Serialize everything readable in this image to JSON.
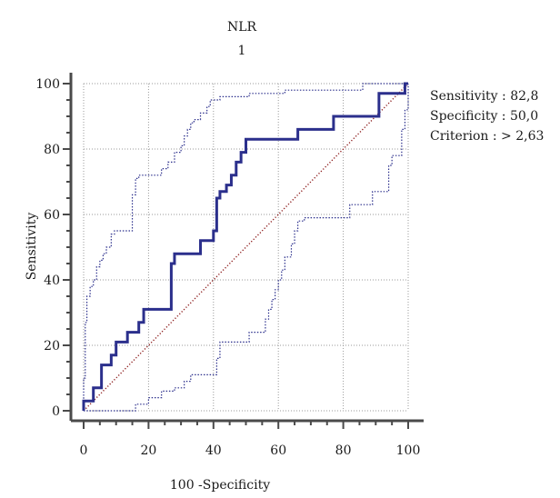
{
  "chart_data": {
    "type": "line",
    "title": "NLR",
    "subtitle": "1",
    "xlabel": "100 -Specificity",
    "ylabel": "Sensitivity",
    "xlim": [
      0,
      100
    ],
    "ylim": [
      0,
      100
    ],
    "x_ticks": [
      0,
      20,
      40,
      60,
      80,
      100
    ],
    "y_ticks": [
      0,
      20,
      40,
      60,
      80,
      100
    ],
    "grid": true,
    "annotations": [
      "Sensitivity : 82,8",
      "Specificity : 50,0",
      "Criterion : > 2,63"
    ],
    "series": [
      {
        "role": "roc",
        "color": "#2b2f8c",
        "style": "solid",
        "points": [
          [
            0,
            0
          ],
          [
            0,
            3
          ],
          [
            3,
            3
          ],
          [
            3,
            7
          ],
          [
            5.5,
            7
          ],
          [
            5.5,
            14
          ],
          [
            8.5,
            14
          ],
          [
            8.5,
            17
          ],
          [
            10,
            17
          ],
          [
            10,
            21
          ],
          [
            13.5,
            21
          ],
          [
            13.5,
            24
          ],
          [
            17,
            24
          ],
          [
            17,
            27
          ],
          [
            18.5,
            27
          ],
          [
            18.5,
            31
          ],
          [
            27,
            31
          ],
          [
            27,
            45
          ],
          [
            28,
            45
          ],
          [
            28,
            48
          ],
          [
            36,
            48
          ],
          [
            36,
            52
          ],
          [
            40,
            52
          ],
          [
            40,
            55
          ],
          [
            41,
            55
          ],
          [
            41,
            65
          ],
          [
            42,
            65
          ],
          [
            42,
            67
          ],
          [
            44,
            67
          ],
          [
            44,
            69
          ],
          [
            45.5,
            69
          ],
          [
            45.5,
            72
          ],
          [
            47,
            72
          ],
          [
            47,
            76
          ],
          [
            48.5,
            76
          ],
          [
            48.5,
            79
          ],
          [
            50,
            79
          ],
          [
            50,
            83
          ],
          [
            66,
            83
          ],
          [
            66,
            86
          ],
          [
            77,
            86
          ],
          [
            77,
            90
          ],
          [
            91,
            90
          ],
          [
            91,
            97
          ],
          [
            99,
            97
          ],
          [
            99,
            100
          ],
          [
            100,
            100
          ]
        ]
      },
      {
        "role": "upper-ci",
        "color": "#2b2f8c",
        "style": "dotted",
        "points": [
          [
            0,
            0
          ],
          [
            0,
            10
          ],
          [
            0.5,
            10
          ],
          [
            0.5,
            27
          ],
          [
            1,
            27
          ],
          [
            1,
            35
          ],
          [
            2,
            35
          ],
          [
            2,
            38
          ],
          [
            3,
            38
          ],
          [
            3,
            40
          ],
          [
            4,
            40
          ],
          [
            4,
            44
          ],
          [
            5,
            44
          ],
          [
            5,
            46
          ],
          [
            6,
            46
          ],
          [
            6,
            48
          ],
          [
            7,
            48
          ],
          [
            7,
            50
          ],
          [
            8.5,
            50
          ],
          [
            8.5,
            54
          ],
          [
            9.5,
            54
          ],
          [
            9.5,
            55
          ],
          [
            15,
            55
          ],
          [
            15,
            66
          ],
          [
            16,
            66
          ],
          [
            16,
            71
          ],
          [
            17,
            71
          ],
          [
            17,
            72
          ],
          [
            24,
            72
          ],
          [
            24,
            74
          ],
          [
            26,
            74
          ],
          [
            26,
            76
          ],
          [
            28,
            76
          ],
          [
            28,
            79
          ],
          [
            30,
            79
          ],
          [
            30,
            81
          ],
          [
            31,
            81
          ],
          [
            31,
            84
          ],
          [
            32,
            84
          ],
          [
            32,
            86
          ],
          [
            33,
            86
          ],
          [
            33,
            88
          ],
          [
            34,
            88
          ],
          [
            34,
            89
          ],
          [
            36,
            89
          ],
          [
            36,
            91
          ],
          [
            38,
            91
          ],
          [
            38,
            93
          ],
          [
            39,
            93
          ],
          [
            39,
            95
          ],
          [
            42,
            95
          ],
          [
            42,
            96
          ],
          [
            51,
            96
          ],
          [
            51,
            97
          ],
          [
            62,
            97
          ],
          [
            62,
            98
          ],
          [
            86,
            98
          ],
          [
            86,
            100
          ],
          [
            100,
            100
          ]
        ]
      },
      {
        "role": "lower-ci",
        "color": "#2b2f8c",
        "style": "dotted",
        "points": [
          [
            0,
            0
          ],
          [
            16,
            0
          ],
          [
            16,
            2
          ],
          [
            20,
            2
          ],
          [
            20,
            4
          ],
          [
            24,
            4
          ],
          [
            24,
            6
          ],
          [
            28,
            6
          ],
          [
            28,
            7
          ],
          [
            31,
            7
          ],
          [
            31,
            9
          ],
          [
            33,
            9
          ],
          [
            33,
            11
          ],
          [
            41,
            11
          ],
          [
            41,
            16
          ],
          [
            42,
            16
          ],
          [
            42,
            21
          ],
          [
            51,
            21
          ],
          [
            51,
            24
          ],
          [
            56,
            24
          ],
          [
            56,
            28
          ],
          [
            57,
            28
          ],
          [
            57,
            31
          ],
          [
            58,
            31
          ],
          [
            58,
            34
          ],
          [
            59,
            34
          ],
          [
            59,
            37
          ],
          [
            60,
            37
          ],
          [
            60,
            40
          ],
          [
            61,
            40
          ],
          [
            61,
            43
          ],
          [
            62,
            43
          ],
          [
            62,
            47
          ],
          [
            64,
            47
          ],
          [
            64,
            51
          ],
          [
            65,
            51
          ],
          [
            65,
            55
          ],
          [
            66,
            55
          ],
          [
            66,
            58
          ],
          [
            68,
            58
          ],
          [
            68,
            59
          ],
          [
            82,
            59
          ],
          [
            82,
            63
          ],
          [
            89,
            63
          ],
          [
            89,
            67
          ],
          [
            94,
            67
          ],
          [
            94,
            75
          ],
          [
            95,
            75
          ],
          [
            95,
            78
          ],
          [
            98,
            78
          ],
          [
            98,
            86
          ],
          [
            99,
            86
          ],
          [
            99,
            92
          ],
          [
            100,
            92
          ],
          [
            100,
            100
          ]
        ]
      },
      {
        "role": "diagonal",
        "color": "#8b1a1a",
        "style": "dotted",
        "points": [
          [
            0,
            0
          ],
          [
            100,
            100
          ]
        ]
      }
    ]
  }
}
